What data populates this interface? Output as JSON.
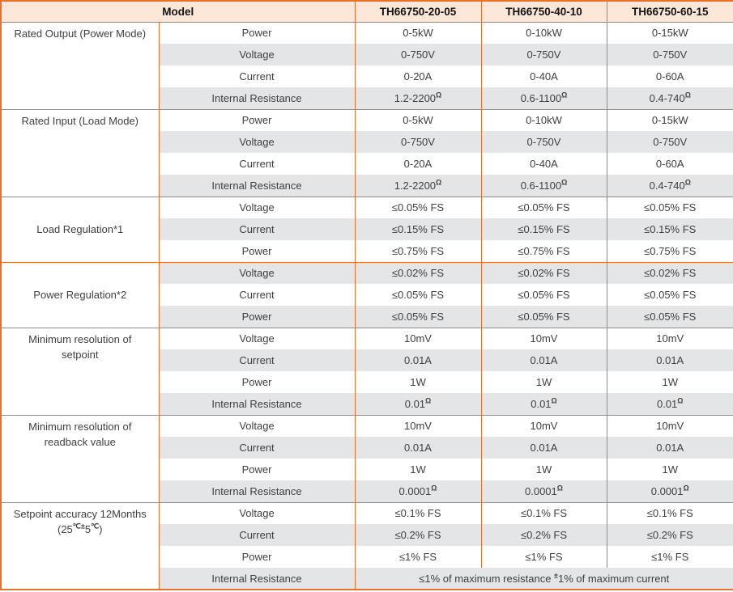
{
  "table": {
    "colors": {
      "border": "#E8702A",
      "header_bg": "#FCE6D8",
      "row_alt_bg": "#E4E5E7",
      "text": "#3F3F3F",
      "header_text": "#141414"
    },
    "header": {
      "model_label": "Model",
      "models": [
        "TH66750-20-05",
        "TH66750-40-10",
        "TH66750-60-15"
      ]
    },
    "groups": [
      {
        "label": "Rated Output (Power Mode)",
        "rows": [
          {
            "param": "Power",
            "values": [
              "0-5kW",
              "0-10kW",
              "0-15kW"
            ]
          },
          {
            "param": "Voltage",
            "values": [
              "0-750V",
              "0-750V",
              "0-750V"
            ]
          },
          {
            "param": "Current",
            "values": [
              "0-20A",
              "0-40A",
              "0-60A"
            ]
          },
          {
            "param": "Internal Resistance",
            "values": [
              "1.2-2200^Ω^",
              "0.6-1100^Ω^",
              "0.4-740^Ω^"
            ]
          }
        ]
      },
      {
        "label": "Rated Input (Load Mode)",
        "rows": [
          {
            "param": "Power",
            "values": [
              "0-5kW",
              "0-10kW",
              "0-15kW"
            ]
          },
          {
            "param": "Voltage",
            "values": [
              "0-750V",
              "0-750V",
              "0-750V"
            ]
          },
          {
            "param": "Current",
            "values": [
              "0-20A",
              "0-40A",
              "0-60A"
            ]
          },
          {
            "param": "Internal Resistance",
            "values": [
              "1.2-2200^Ω^",
              "0.6-1100^Ω^",
              "0.4-740^Ω^"
            ]
          }
        ]
      },
      {
        "label": "Load Regulation*1",
        "rows": [
          {
            "param": "Voltage",
            "values": [
              "≤0.05% FS",
              "≤0.05% FS",
              "≤0.05% FS"
            ]
          },
          {
            "param": "Current",
            "values": [
              "≤0.15% FS",
              "≤0.15% FS",
              "≤0.15% FS"
            ]
          },
          {
            "param": "Power",
            "values": [
              "≤0.75% FS",
              "≤0.75% FS",
              "≤0.75% FS"
            ]
          }
        ]
      },
      {
        "label": "Power Regulation*2",
        "rows": [
          {
            "param": "Voltage",
            "values": [
              "≤0.02% FS",
              "≤0.02% FS",
              "≤0.02% FS"
            ]
          },
          {
            "param": "Current",
            "values": [
              "≤0.05% FS",
              "≤0.05% FS",
              "≤0.05% FS"
            ]
          },
          {
            "param": "Power",
            "values": [
              "≤0.05% FS",
              "≤0.05% FS",
              "≤0.05% FS"
            ]
          }
        ]
      },
      {
        "label": "Minimum resolution of\nsetpoint",
        "rows": [
          {
            "param": "Voltage",
            "values": [
              "10mV",
              "10mV",
              "10mV"
            ]
          },
          {
            "param": "Current",
            "values": [
              "0.01A",
              "0.01A",
              "0.01A"
            ]
          },
          {
            "param": "Power",
            "values": [
              "1W",
              "1W",
              "1W"
            ]
          },
          {
            "param": "Internal Resistance",
            "values": [
              "0.01^Ω^",
              "0.01^Ω^",
              "0.01^Ω^"
            ]
          }
        ]
      },
      {
        "label": "Minimum resolution of\nreadback value",
        "rows": [
          {
            "param": "Voltage",
            "values": [
              "10mV",
              "10mV",
              "10mV"
            ]
          },
          {
            "param": "Current",
            "values": [
              "0.01A",
              "0.01A",
              "0.01A"
            ]
          },
          {
            "param": "Power",
            "values": [
              "1W",
              "1W",
              "1W"
            ]
          },
          {
            "param": "Internal Resistance",
            "values": [
              "0.0001^Ω^",
              "0.0001^Ω^",
              "0.0001^Ω^"
            ]
          }
        ]
      },
      {
        "label": "Setpoint accuracy 12Months\n(25^℃±^5^℃^)",
        "rows": [
          {
            "param": "Voltage",
            "values": [
              "≤0.1% FS",
              "≤0.1% FS",
              "≤0.1% FS"
            ]
          },
          {
            "param": "Current",
            "values": [
              "≤0.2% FS",
              "≤0.2% FS",
              "≤0.2% FS"
            ]
          },
          {
            "param": "Power",
            "values": [
              "≤1% FS",
              "≤1% FS",
              "≤1% FS"
            ]
          },
          {
            "param": "Internal Resistance",
            "merged": "≤1% of maximum resistance ^±^1% of maximum current"
          }
        ]
      }
    ]
  }
}
